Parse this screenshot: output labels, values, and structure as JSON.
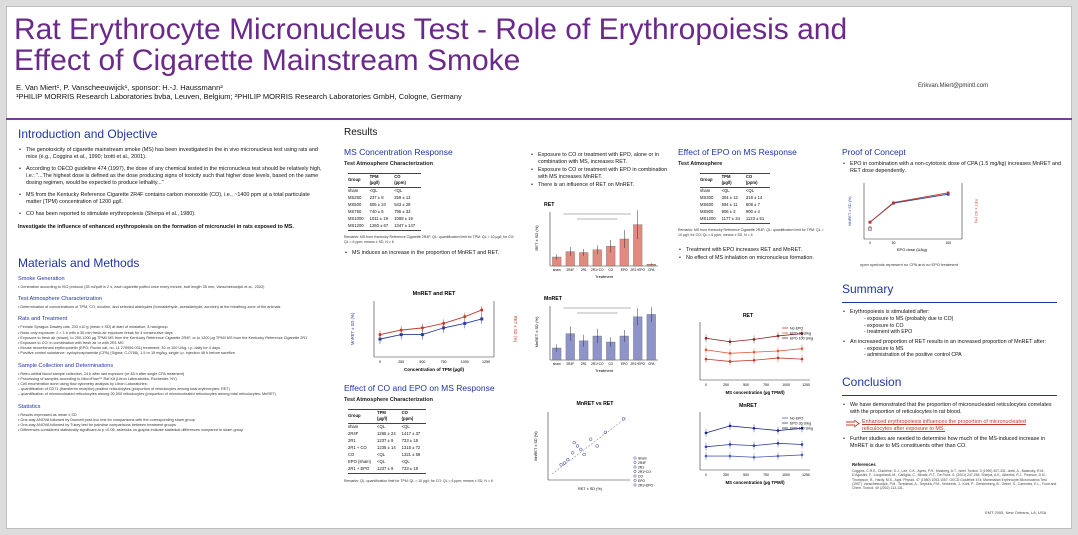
{
  "header": {
    "title": "Rat Erythrocyte Micronucleus Test - Role of Erythropoiesis and Effect of Cigarette Mainstream Smoke",
    "authors": "E. Van Miert¹, P. Vanscheeuwijck¹, sponsor: H.-J. Haussmann²",
    "affiliations": "¹PHILIP MORRIS Research Laboratories bvba, Leuven, Belgium; ²PHILIP MORRIS Research Laboratories GmbH, Cologne, Germany",
    "email": "Erikvan.Miert@pmintl.com"
  },
  "intro": {
    "heading": "Introduction and Objective",
    "bullets": [
      "The genotoxicity of cigarette mainstream smoke (MS) has been investigated in the in vivo micronucleus test using rats and mice (e.g., Coggins et al., 1990; Izotti et al., 2001).",
      "According to OECD guideline 474 (1997), the dose of any chemical tested in the micronucleus test should be relatively high, i.e.: \"...The highest dose is defined as the dose producing signs of toxicity such that higher dose levels, based on the same dosing regimen, would be expected to produce lethality...\"",
      "MS from the Kentucky Reference Cigarette 2R4F contains carbon monoxide (CO), i.e., ~1400 ppm at a total particulate matter (TPM) concentration of 1200 µg/l.",
      "CO has been reported to stimulate erythropoiesis (Sherpa et al., 1980)."
    ],
    "objective": "Investigate the influence of enhanced erythropoiesis on the formation of micronuclei in rats exposed to MS."
  },
  "methods": {
    "heading": "Materials and Methods",
    "blocks": [
      {
        "title": "Smoke Generation",
        "lines": [
          "Generation according to ISO protocol (35 ml/puff in 2 s, each cigarette puffed once every minute, butt length 35 mm; Vanscheeuwijck et al., 2002)"
        ]
      },
      {
        "title": "Test Atmosphere Characterization",
        "lines": [
          "Determination of concentrations of TPM, CO, nicotine, and selected aldehydes (formaldehyde, acetaldehyde, acrolein) at the breathing zone of the animals"
        ]
      },
      {
        "title": "Rats and Treatment",
        "lines": [
          "Female Sprague-Dawley rats, 203 ±10 g (mean ± SD) at start of inhalation, 8 rats/group",
          "Nose-only exposure: 2 × 1 h with a 30-min fresh-air exposure break for 4 consecutive days",
          "Exposure to fresh air (sham), to 250-1200 µg TPM/l MS from the Kentucky Reference Cigarette 2R4F, or to 1200 µg TPM/l MS from the Kentucky Reference Cigarette 2R1",
          "Exposure to CO: in combination with fresh air or with 2R1 MS",
          "Mouse recombinant erythropoietin (EPO; Roche cat. no. 11 276956 001) treatment, 30 or 100 U/kg, i.p. daily for 4 days",
          "Positive control substance: cyclophosphamide (CPA) (Sigma; C-0768), 1.5 or 15 mg/kg, single i.p. injection 48 h before sacrifice"
        ]
      },
      {
        "title": "Sample Collection and Determinations",
        "lines": [
          "Retro-orbital blood sample collection, 24 h after last exposure (or 48 h after single CPA treatment)",
          "Processing of samples according to MicroFlow™ Rat Kit (Litron Laboratories, Rochester, NY)",
          "Cell enumeration done using flow cytometry analysis by Litron Laboratories:",
          "– quantification of CD71 (transferrin receptor)-positive reticulocytes (proportion of reticulocytes among total erythrocytes: RET)",
          "– quantification of micronucleated reticulocytes among 20,000 reticulocytes (proportion of micronucleated reticulocytes among total reticulocytes: MnRET)"
        ]
      },
      {
        "title": "Statistics",
        "lines": [
          "Results expressed as mean ± SD",
          "One-way ANOVA followed by Dunnett post-hoc test for comparisons with the corresponding sham group",
          "One-way ANOVA followed by Tukey test for pairwise comparisons between treatment groups",
          "Differences considered statistically significant at p <0.05; asterisks on graphs indicate statistical differences compared to sham group"
        ]
      }
    ]
  },
  "results": {
    "heading": "Results",
    "ms_conc": {
      "heading": "MS Concentration Response",
      "table_title": "Test Atmosphere Characterization",
      "columns": [
        "Group",
        "TPM",
        "CO"
      ],
      "units": [
        "",
        "(µg/l)",
        "(ppm)"
      ],
      "rows": [
        [
          "sham",
          "<QL",
          "<QL"
        ],
        [
          "MS250",
          "237 ± 8",
          "259 ± 13"
        ],
        [
          "MS500",
          "505 ± 24",
          "543 ± 28"
        ],
        [
          "MS750",
          "740 ± 6",
          "795 ± 33"
        ],
        [
          "MS1000",
          "1011 ± 19",
          "1088 ± 19"
        ],
        [
          "MS1200",
          "1260 ± 67",
          "1347 ± 147"
        ]
      ],
      "remarks": "Remarks: MS from Kentucky Reference Cigarette 2R4F; QL: quantification limit for TPM: QL = 10 µg/l; for CO: QL = 6 ppm; means ± SD, N = 6",
      "bullet": "MS induces an increase in the proportion of MnRET and RET.",
      "chart_title": "MnRET and RET",
      "xlabel": "Concentration of TPM (µg/l)",
      "ylabel_left": "MnRET ± SD (%)",
      "ylabel_right": "RET ± SD (%)"
    },
    "co_epo": {
      "bullets": [
        "Exposure to CO or treatment with EPO, alone or in combination with MS, increases RET.",
        "Exposure to CO or treatment with EPO in combination with MS increases MnRET.",
        "There is an influence of RET on MnRET."
      ],
      "ret_chart_title": "RET",
      "ret_ylabel": "RET ± SD (%)",
      "mnret_chart_title": "MnRET",
      "mnret_ylabel": "MnRET ± SD (%)",
      "xlabel": "Treatment",
      "categories": [
        "sham",
        "2R4F",
        "2R1",
        "2R1+CO",
        "CO",
        "EPO",
        "2R1+EPO",
        "CPA"
      ],
      "scatter_title": "MnRET vs RET",
      "scatter_xlabel": "RET ± SD (%)",
      "scatter_ylabel": "MnRET ± SD (%)",
      "scatter_legend": [
        "Sham",
        "2R4F",
        "2R1",
        "2R1+CO",
        "CO",
        "EPO",
        "2R1+EPO"
      ]
    },
    "effect_co_epo": {
      "heading": "Effect of CO and EPO on MS Response",
      "table_title": "Test Atmosphere Characterization",
      "columns": [
        "Group",
        "TPM",
        "CO"
      ],
      "units": [
        "",
        "(µg/l)",
        "(ppm)"
      ],
      "rows": [
        [
          "sham",
          "<QL",
          "<QL"
        ],
        [
          "2R4F",
          "1265 ± 24",
          "1417 ± 37"
        ],
        [
          "2R1",
          "1237 ± 9",
          "733 ± 18"
        ],
        [
          "2R1 + CO",
          "1235 ± 14",
          "1315 ± 72"
        ],
        [
          "CO",
          "<QL",
          "1321 ± 58"
        ],
        [
          "EPO (sham)",
          "<QL",
          "<QL"
        ],
        [
          "2R1 + EPO",
          "1237 ± 9",
          "733 ± 18"
        ]
      ],
      "remarks": "Remarks: QL: quantification limit for TPM: QL = 10 µg/l; for CO: QL = 6 ppm; means ± SD, N = 6"
    },
    "epo_ms": {
      "heading": "Effect of EPO on MS Response",
      "table_title": "Test Atmosphere",
      "columns": [
        "Group",
        "TPM",
        "CO"
      ],
      "units": [
        "",
        "(µg/l)",
        "(ppm)"
      ],
      "rows": [
        [
          "sham",
          "<QL",
          "<QL"
        ],
        [
          "MS300",
          "304 ± 12",
          "318 ± 14"
        ],
        [
          "MS600",
          "594 ± 11",
          "608 ± 7"
        ],
        [
          "MS900",
          "906 ± 2",
          "900 ± 4"
        ],
        [
          "MS1200",
          "1177 ± 34",
          "1123 ± 51"
        ]
      ],
      "remarks": "Remarks: MS from Kentucky Reference Cigarette 2R4F; QL: quantification limit for TPM: QL = 10 µg/l; for CO: QL = 6 ppm; means ± SD, N = 6",
      "bullets": [
        "Treatment with EPO increases RET and MnRET.",
        "No effect of MS inhalation on micronucleus formation."
      ],
      "ret_chart_title": "RET",
      "mnret_chart_title": "MnRET",
      "xlabel": "MS concentration (µg TPM/l)",
      "legend": [
        "No EPO",
        "EPO 30 U/kg",
        "EPO 100 U/kg"
      ]
    },
    "proof": {
      "heading": "Proof of Concept",
      "bullet": "EPO in combination with a non-cytotoxic dose of CPA (1.5 mg/kg) increases MnRET and RET dose dependently.",
      "xlabel": "EPO dose (U/kg)",
      "ylabel_left": "MnRET ± SD (%)",
      "ylabel_right": "RET ± SD (%)",
      "caption": "open symbols represent no CPA and no EPO treatment"
    }
  },
  "summary": {
    "heading": "Summary",
    "b1": "Erythropoiesis is stimulated after:",
    "b1_items": [
      "- exposure to MS (probably due to CO)",
      "- exposure to CO",
      "- treatment with EPO"
    ],
    "b2": "An increased proportion of RET results in an increased proportion of MnRET after:",
    "b2_items": [
      "- exposure to MS",
      "- administration of the positive control CPA"
    ]
  },
  "conclusion": {
    "heading": "Conclusion",
    "b1": "We have demonstrated that the proportion of micronucleated reticulocytes correlates with the proportion of reticulocytes in rat blood.",
    "arrow_text": "Enhanced erythropoiesis influences the proportion of micronucleated reticulocytes after exposure to MS.",
    "b2": "Further studies are needed to determine how much of the MS-induced increase in MnRET is due to MS constituents other than CO."
  },
  "references": {
    "heading": "References",
    "text": "Coggins, C.R.E., Duchêne, D.J., Lee, C.K., Ayres, P.H., Mosberg, A.T., Ishel. Toxicol. 3 (1990) 407-431. Izotti, A., Balansky, R.M., D'Agostini, F., Longobardi, M., Cartiglia, C., Micale, R.T., De Flora, S. (2001) 247-254. Sherpa, A.K., Albertini, R.J., Pearson, D.N., Thompson, R., Hardy, M.S., Appl. Physiol. 47 (1980) 1053-1057. OECD Guideline 474: Mammalian Erythrocyte Micronucleus Test (1997). Vanscheeuwijck, P.M., Teredesai, A., Terpstra, P.M., Verbeeck, J., Kuhl, P., Gerstenberg, B., Gebel, S., Carmines, E.L., Food and Chem. Toxicol. 40 (2002) 113-131."
  },
  "footer": "EMT 2005, New Orleans, LA, USA",
  "colors": {
    "title": "#6b2a8a",
    "heading": "#1f35a6",
    "ret_series": "#c0392b",
    "mnret_series": "#2c3e9a"
  }
}
